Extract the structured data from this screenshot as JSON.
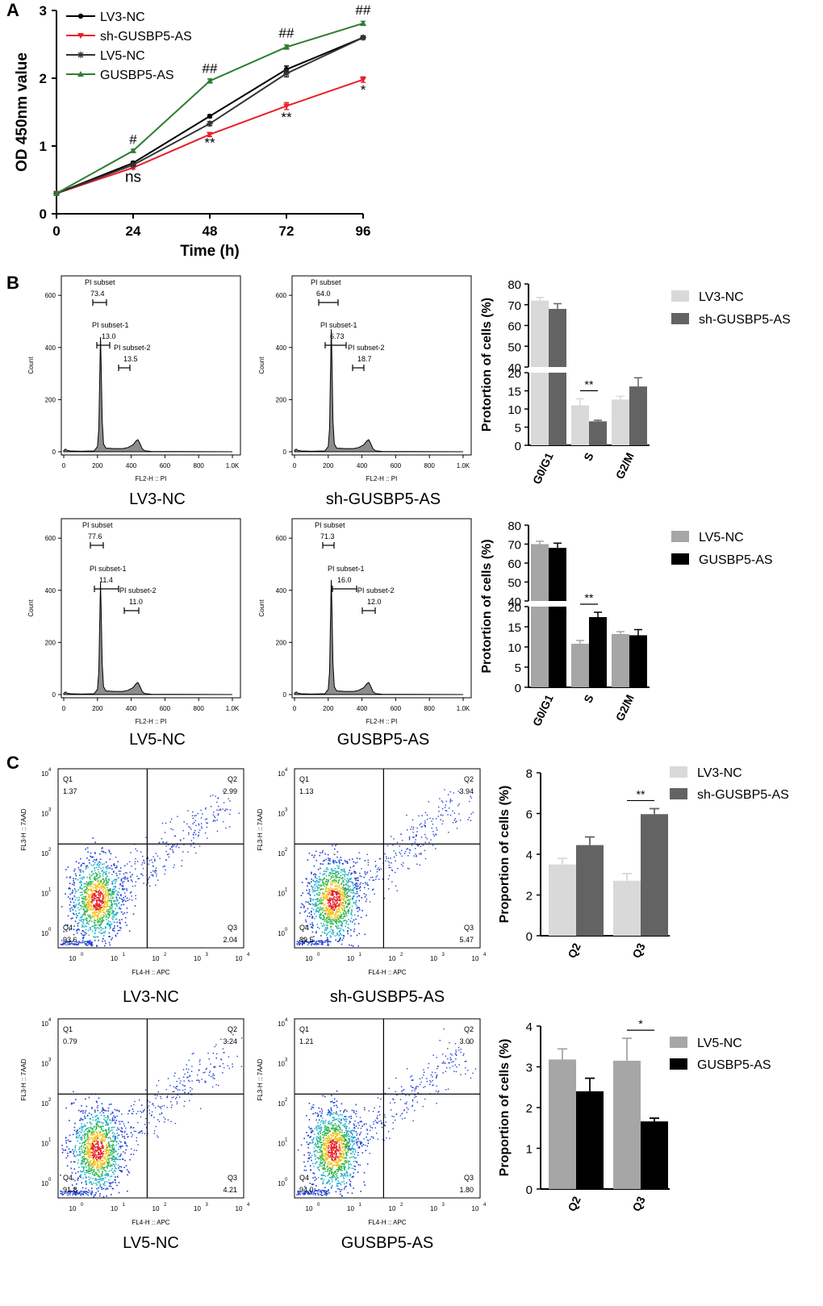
{
  "panels": {
    "A": "A",
    "B": "B",
    "C": "C"
  },
  "colors": {
    "lv3": "#000000",
    "sh": "#e8202a",
    "lv5": "#333333",
    "gus": "#2e7d32",
    "lightgray": "#d9d9d9",
    "darkgray": "#636363",
    "midgray": "#a6a6a6",
    "black": "#000000",
    "histfill": "#8c8c8c"
  },
  "chart_data": [
    {
      "id": "A",
      "type": "line",
      "xlabel": "Time (h)",
      "ylabel": "OD 450nm value",
      "x": [
        0,
        24,
        48,
        72,
        96
      ],
      "xlim": [
        0,
        96
      ],
      "ylim": [
        0,
        3
      ],
      "xticks": [
        "0",
        "24",
        "48",
        "72",
        "96"
      ],
      "yticks": [
        "0",
        "1",
        "2",
        "3"
      ],
      "series": [
        {
          "name": "LV3-NC",
          "color": "#000000",
          "marker": "circle",
          "values": [
            0.3,
            0.75,
            1.44,
            2.13,
            2.6
          ],
          "err": [
            0,
            0.02,
            0.02,
            0.05,
            0.02
          ]
        },
        {
          "name": "sh-GUSBP5-AS",
          "color": "#e8202a",
          "marker": "triangle-down",
          "values": [
            0.3,
            0.68,
            1.17,
            1.59,
            1.98
          ],
          "err": [
            0,
            0.02,
            0.03,
            0.05,
            0.04
          ]
        },
        {
          "name": "LV5-NC",
          "color": "#333333",
          "marker": "star",
          "values": [
            0.3,
            0.72,
            1.33,
            2.07,
            2.6
          ],
          "err": [
            0,
            0.02,
            0.03,
            0.05,
            0.02
          ]
        },
        {
          "name": "GUSBP5-AS",
          "color": "#2e7d32",
          "marker": "triangle-up",
          "values": [
            0.3,
            0.93,
            1.96,
            2.46,
            2.81
          ],
          "err": [
            0,
            0.02,
            0.03,
            0.03,
            0.03
          ]
        }
      ],
      "annotations": [
        {
          "text": "#",
          "x": 24,
          "y": 1.03
        },
        {
          "text": "ns",
          "x": 24,
          "y": 0.47
        },
        {
          "text": "##",
          "x": 48,
          "y": 2.08
        },
        {
          "text": "**",
          "x": 48,
          "y": 0.98
        },
        {
          "text": "##",
          "x": 72,
          "y": 2.6
        },
        {
          "text": "**",
          "x": 72,
          "y": 1.36
        },
        {
          "text": "##",
          "x": 96,
          "y": 2.94
        },
        {
          "text": "*",
          "x": 96,
          "y": 1.76
        }
      ]
    },
    {
      "id": "B-top",
      "type": "bar",
      "ylabel": "Protortion of cells (%)",
      "categories": [
        "G0/G1",
        "S",
        "G2/M"
      ],
      "series": [
        {
          "name": "LV3-NC",
          "color": "#d9d9d9",
          "values": [
            72,
            11,
            12.6
          ],
          "err": [
            1.5,
            1.8,
            0.9
          ]
        },
        {
          "name": "sh-GUSBP5-AS",
          "color": "#636363",
          "values": [
            68,
            6.6,
            16.2
          ],
          "err": [
            2.5,
            0.3,
            2.4
          ]
        }
      ],
      "yticks_low": [
        "0",
        "5",
        "10",
        "15",
        "20"
      ],
      "yticks_high": [
        "40",
        "50",
        "60",
        "70",
        "80"
      ],
      "sig": {
        "category": "S",
        "text": "**"
      }
    },
    {
      "id": "B-bottom",
      "type": "bar",
      "ylabel": "Protortion of cells (%)",
      "categories": [
        "G0/G1",
        "S",
        "G2/M"
      ],
      "series": [
        {
          "name": "LV5-NC",
          "color": "#a6a6a6",
          "values": [
            70,
            10.8,
            13.2
          ],
          "err": [
            1.5,
            0.8,
            0.6
          ]
        },
        {
          "name": "GUSBP5-AS",
          "color": "#000000",
          "values": [
            68,
            17.4,
            12.9
          ],
          "err": [
            2.5,
            1.2,
            1.4
          ]
        }
      ],
      "yticks_low": [
        "0",
        "5",
        "10",
        "15",
        "20"
      ],
      "yticks_high": [
        "40",
        "50",
        "60",
        "70",
        "80"
      ],
      "sig": {
        "category": "S",
        "text": "**"
      }
    },
    {
      "id": "C-top",
      "type": "bar",
      "ylabel": "Proportion of cells (%)",
      "categories": [
        "Q2",
        "Q3"
      ],
      "ylim": [
        0,
        8
      ],
      "yticks": [
        "0",
        "2",
        "4",
        "6",
        "8"
      ],
      "series": [
        {
          "name": "LV3-NC",
          "color": "#d9d9d9",
          "values": [
            3.5,
            2.7
          ],
          "err": [
            0.3,
            0.35
          ]
        },
        {
          "name": "sh-GUSBP5-AS",
          "color": "#636363",
          "values": [
            4.45,
            5.97
          ],
          "err": [
            0.4,
            0.27
          ]
        }
      ],
      "sig": {
        "category": "Q3",
        "text": "**"
      }
    },
    {
      "id": "C-bottom",
      "type": "bar",
      "ylabel": "Proportion of cells (%)",
      "categories": [
        "Q2",
        "Q3"
      ],
      "ylim": [
        0,
        4
      ],
      "yticks": [
        "0",
        "1",
        "2",
        "3",
        "4"
      ],
      "series": [
        {
          "name": "LV5-NC",
          "color": "#a6a6a6",
          "values": [
            3.18,
            3.15
          ],
          "err": [
            0.26,
            0.55
          ]
        },
        {
          "name": "GUSBP5-AS",
          "color": "#000000",
          "values": [
            2.4,
            1.66
          ],
          "err": [
            0.32,
            0.08
          ]
        }
      ],
      "sig": {
        "category": "Q3",
        "text": "*"
      }
    }
  ],
  "histograms": [
    {
      "id": "h1",
      "caption": "LV3-NC",
      "xlabel": "FL2-H :: PI",
      "ylabel": "Count",
      "yticks": [
        "0",
        "200",
        "400",
        "600"
      ],
      "xticks": [
        "0",
        "200",
        "400",
        "600",
        "800",
        "1.0K"
      ],
      "gates": [
        {
          "name": "PI subset",
          "value": "73.4"
        },
        {
          "name": "PI subset-1",
          "value": "13.0"
        },
        {
          "name": "PI subset-2",
          "value": "13.5"
        }
      ],
      "g1peak": 440
    },
    {
      "id": "h2",
      "caption": "sh-GUSBP5-AS",
      "xlabel": "FL2-H :: PI",
      "ylabel": "Count",
      "yticks": [
        "0",
        "200",
        "400",
        "600"
      ],
      "xticks": [
        "0",
        "200",
        "400",
        "600",
        "800",
        "1.0K"
      ],
      "gates": [
        {
          "name": "PI subset",
          "value": "64.0"
        },
        {
          "name": "PI subset-1",
          "value": "6.73"
        },
        {
          "name": "PI subset-2",
          "value": "18.7"
        }
      ],
      "g1peak": 470
    },
    {
      "id": "h3",
      "caption": "LV5-NC",
      "xlabel": "FL2-H :: PI",
      "ylabel": "Count",
      "yticks": [
        "0",
        "200",
        "400",
        "600"
      ],
      "xticks": [
        "0",
        "200",
        "400",
        "600",
        "800",
        "1.0K"
      ],
      "gates": [
        {
          "name": "PI subset",
          "value": "77.6"
        },
        {
          "name": "PI subset-1",
          "value": "11.4"
        },
        {
          "name": "PI subset-2",
          "value": "11.0"
        }
      ],
      "g1peak": 430
    },
    {
      "id": "h4",
      "caption": "GUSBP5-AS",
      "xlabel": "FL2-H :: PI",
      "ylabel": "Count",
      "yticks": [
        "0",
        "200",
        "400",
        "600"
      ],
      "xticks": [
        "0",
        "200",
        "400",
        "600",
        "800",
        "1.0K"
      ],
      "gates": [
        {
          "name": "PI subset",
          "value": "71.3"
        },
        {
          "name": "PI subset-1",
          "value": "16.0"
        },
        {
          "name": "PI subset-2",
          "value": "12.0"
        }
      ],
      "g1peak": 440
    }
  ],
  "dotplots": [
    {
      "id": "d1",
      "caption": "LV3-NC",
      "xlabel": "FL4-H :: APC",
      "ylabel": "FL3-H :: 7AAD",
      "quadrants": {
        "Q1": "1.37",
        "Q2": "2.99",
        "Q3": "2.04",
        "Q4": "93.6"
      }
    },
    {
      "id": "d2",
      "caption": "sh-GUSBP5-AS",
      "xlabel": "FL4-H :: APC",
      "ylabel": "FL3-H :: 7AAD",
      "quadrants": {
        "Q1": "1.13",
        "Q2": "3.94",
        "Q3": "5.47",
        "Q4": "89.5"
      }
    },
    {
      "id": "d3",
      "caption": "LV5-NC",
      "xlabel": "FL4-H :: APC",
      "ylabel": "FL3-H :: 7AAD",
      "quadrants": {
        "Q1": "0.79",
        "Q2": "3.24",
        "Q3": "4.21",
        "Q4": "91.8"
      }
    },
    {
      "id": "d4",
      "caption": "GUSBP5-AS",
      "xlabel": "FL4-H :: APC",
      "ylabel": "FL3-H :: 7AAD",
      "quadrants": {
        "Q1": "1.21",
        "Q2": "3.00",
        "Q3": "1.80",
        "Q4": "94.0"
      }
    }
  ],
  "log_ticks": [
    "10",
    "10",
    "10",
    "10",
    "10"
  ],
  "log_exps": [
    "0",
    "1",
    "2",
    "3",
    "4"
  ]
}
